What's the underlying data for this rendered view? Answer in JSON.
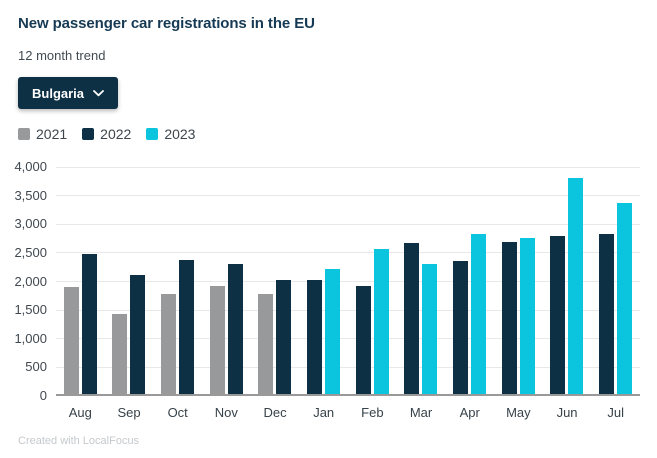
{
  "header": {
    "title": "New passenger car registrations in the EU",
    "subtitle": "12 month trend"
  },
  "dropdown": {
    "label": "Bulgaria"
  },
  "footer": {
    "credit": "Created with LocalFocus"
  },
  "colors": {
    "navy": "#0e3044",
    "cyan": "#0bc4dd",
    "gray": "#97999b",
    "gridline": "#e8e8e8",
    "baseline": "#999999"
  },
  "chart_data": {
    "type": "bar",
    "title": "New passenger car registrations in the EU",
    "subtitle": "12 month trend",
    "xlabel": "",
    "ylabel": "",
    "ylim": [
      0,
      4000
    ],
    "yticks": [
      0,
      500,
      1000,
      1500,
      2000,
      2500,
      3000,
      3500,
      4000
    ],
    "ytick_labels": [
      "0",
      "500",
      "1,000",
      "1,500",
      "2,000",
      "2,500",
      "3,000",
      "3,500",
      "4,000"
    ],
    "grid": true,
    "legend_position": "top-left",
    "categories": [
      "Aug",
      "Sep",
      "Oct",
      "Nov",
      "Dec",
      "Jan",
      "Feb",
      "Mar",
      "Apr",
      "May",
      "Jun",
      "Jul"
    ],
    "series": [
      {
        "name": "2021",
        "color": "#97999b",
        "values": [
          1900,
          1430,
          1790,
          1920,
          1780,
          null,
          null,
          null,
          null,
          null,
          null,
          null
        ]
      },
      {
        "name": "2022",
        "color": "#0e3044",
        "values": [
          2480,
          2120,
          2380,
          2310,
          2020,
          2030,
          1930,
          2680,
          2350,
          2690,
          2800,
          2830
        ]
      },
      {
        "name": "2023",
        "color": "#0bc4dd",
        "values": [
          null,
          null,
          null,
          null,
          null,
          2220,
          2570,
          2300,
          2830,
          2760,
          3800,
          3380
        ]
      }
    ]
  }
}
